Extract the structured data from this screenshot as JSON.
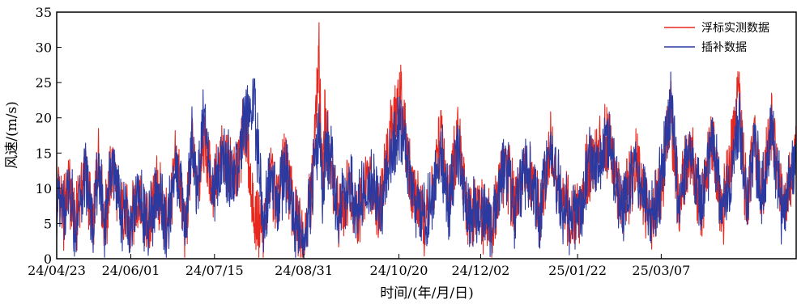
{
  "chart_data": {
    "type": "line",
    "title": "",
    "xlabel": "时间/(年/月/日)",
    "ylabel": "风速/(m/s)",
    "ylim": [
      0,
      35
    ],
    "yticks": [
      0,
      5,
      10,
      15,
      20,
      25,
      30,
      35
    ],
    "xlim": [
      "2024-04-23",
      "2025-05-17"
    ],
    "x_tick_labels": [
      "24/04/23",
      "24/06/01",
      "24/07/15",
      "24/08/31",
      "24/10/20",
      "24/12/02",
      "25/01/22",
      "25/03/07"
    ],
    "x_tick_dates": [
      "2024-04-23",
      "2024-06-01",
      "2024-07-15",
      "2024-08-31",
      "2024-10-20",
      "2024-12-02",
      "2025-01-22",
      "2025-03-07"
    ],
    "grid": false,
    "legend_position": "top-right",
    "series": [
      {
        "name": "浮标实测数据",
        "color": "#e8281e",
        "keypoints": [
          [
            "2024-04-23",
            3
          ],
          [
            "2024-04-24",
            13
          ],
          [
            "2024-04-26",
            5
          ],
          [
            "2024-04-29",
            12
          ],
          [
            "2024-05-03",
            4
          ],
          [
            "2024-05-08",
            15.5
          ],
          [
            "2024-05-12",
            3
          ],
          [
            "2024-05-15",
            18.5
          ],
          [
            "2024-05-18",
            3
          ],
          [
            "2024-05-22",
            15.5
          ],
          [
            "2024-05-27",
            7
          ],
          [
            "2024-06-01",
            4
          ],
          [
            "2024-06-05",
            11
          ],
          [
            "2024-06-10",
            3
          ],
          [
            "2024-06-15",
            11
          ],
          [
            "2024-06-20",
            4
          ],
          [
            "2024-06-25",
            16
          ],
          [
            "2024-06-30",
            3
          ],
          [
            "2024-07-03",
            19
          ],
          [
            "2024-07-06",
            9
          ],
          [
            "2024-07-09",
            21
          ],
          [
            "2024-07-14",
            11
          ],
          [
            "2024-07-20",
            17
          ],
          [
            "2024-07-26",
            12
          ],
          [
            "2024-07-31",
            23
          ],
          [
            "2024-08-05",
            5
          ],
          [
            "2024-08-10",
            4
          ],
          [
            "2024-08-14",
            14
          ],
          [
            "2024-08-17",
            6
          ],
          [
            "2024-08-21",
            16.5
          ],
          [
            "2024-08-26",
            5
          ],
          [
            "2024-08-31",
            3
          ],
          [
            "2024-09-04",
            10
          ],
          [
            "2024-09-08",
            33.5
          ],
          [
            "2024-09-10",
            10
          ],
          [
            "2024-09-11",
            24
          ],
          [
            "2024-09-13",
            17
          ],
          [
            "2024-09-18",
            6
          ],
          [
            "2024-09-24",
            12
          ],
          [
            "2024-09-28",
            6
          ],
          [
            "2024-10-04",
            13
          ],
          [
            "2024-10-10",
            8
          ],
          [
            "2024-10-16",
            21.5
          ],
          [
            "2024-10-21",
            27.5
          ],
          [
            "2024-10-26",
            12
          ],
          [
            "2024-11-01",
            5
          ],
          [
            "2024-11-06",
            8
          ],
          [
            "2024-11-11",
            21
          ],
          [
            "2024-11-15",
            8
          ],
          [
            "2024-11-20",
            21.5
          ],
          [
            "2024-11-25",
            6
          ],
          [
            "2024-12-02",
            7
          ],
          [
            "2024-12-08",
            4
          ],
          [
            "2024-12-15",
            16
          ],
          [
            "2024-12-20",
            7
          ],
          [
            "2024-12-26",
            14
          ],
          [
            "2025-01-02",
            6
          ],
          [
            "2025-01-08",
            18
          ],
          [
            "2025-01-14",
            7
          ],
          [
            "2025-01-22",
            5
          ],
          [
            "2025-01-28",
            15
          ],
          [
            "2025-02-03",
            17.5
          ],
          [
            "2025-02-08",
            20.5
          ],
          [
            "2025-02-14",
            7
          ],
          [
            "2025-02-22",
            15
          ],
          [
            "2025-03-01",
            5
          ],
          [
            "2025-03-07",
            12
          ],
          [
            "2025-03-12",
            25
          ],
          [
            "2025-03-16",
            8
          ],
          [
            "2025-03-22",
            18
          ],
          [
            "2025-03-28",
            7
          ],
          [
            "2025-04-03",
            20
          ],
          [
            "2025-04-08",
            5
          ],
          [
            "2025-04-14",
            21
          ],
          [
            "2025-04-17",
            26.5
          ],
          [
            "2025-04-21",
            8
          ],
          [
            "2025-04-25",
            20
          ],
          [
            "2025-04-29",
            9
          ],
          [
            "2025-05-04",
            23.5
          ],
          [
            "2025-05-10",
            6
          ],
          [
            "2025-05-16",
            17
          ]
        ]
      },
      {
        "name": "插补数据",
        "color": "#2b3aa0",
        "keypoints": [
          [
            "2024-04-23",
            3
          ],
          [
            "2024-04-24",
            12
          ],
          [
            "2024-04-26",
            5
          ],
          [
            "2024-04-29",
            11
          ],
          [
            "2024-05-03",
            4
          ],
          [
            "2024-05-08",
            15
          ],
          [
            "2024-05-12",
            3
          ],
          [
            "2024-05-15",
            15
          ],
          [
            "2024-05-18",
            3
          ],
          [
            "2024-05-22",
            15
          ],
          [
            "2024-05-27",
            7
          ],
          [
            "2024-06-01",
            4
          ],
          [
            "2024-06-05",
            10.5
          ],
          [
            "2024-06-10",
            3
          ],
          [
            "2024-06-15",
            10
          ],
          [
            "2024-06-20",
            4
          ],
          [
            "2024-06-25",
            15
          ],
          [
            "2024-06-30",
            3
          ],
          [
            "2024-07-03",
            19
          ],
          [
            "2024-07-06",
            9
          ],
          [
            "2024-07-09",
            24
          ],
          [
            "2024-07-14",
            11
          ],
          [
            "2024-07-20",
            16
          ],
          [
            "2024-07-26",
            12
          ],
          [
            "2024-07-31",
            23
          ],
          [
            "2024-08-05",
            25.5
          ],
          [
            "2024-08-10",
            4
          ],
          [
            "2024-08-14",
            13
          ],
          [
            "2024-08-17",
            6
          ],
          [
            "2024-08-21",
            15
          ],
          [
            "2024-08-26",
            5
          ],
          [
            "2024-08-31",
            3
          ],
          [
            "2024-09-04",
            10
          ],
          [
            "2024-09-08",
            22
          ],
          [
            "2024-09-10",
            10
          ],
          [
            "2024-09-11",
            17
          ],
          [
            "2024-09-13",
            18
          ],
          [
            "2024-09-18",
            6
          ],
          [
            "2024-09-24",
            12
          ],
          [
            "2024-09-28",
            6
          ],
          [
            "2024-10-04",
            13
          ],
          [
            "2024-10-10",
            8
          ],
          [
            "2024-10-16",
            17
          ],
          [
            "2024-10-21",
            22.5
          ],
          [
            "2024-10-26",
            12
          ],
          [
            "2024-11-01",
            5
          ],
          [
            "2024-11-06",
            8
          ],
          [
            "2024-11-11",
            18
          ],
          [
            "2024-11-15",
            8
          ],
          [
            "2024-11-20",
            19
          ],
          [
            "2024-11-25",
            6
          ],
          [
            "2024-12-02",
            7
          ],
          [
            "2024-12-08",
            4
          ],
          [
            "2024-12-15",
            16
          ],
          [
            "2024-12-20",
            7
          ],
          [
            "2024-12-26",
            14
          ],
          [
            "2025-01-02",
            6
          ],
          [
            "2025-01-08",
            18
          ],
          [
            "2025-01-14",
            7
          ],
          [
            "2025-01-22",
            5
          ],
          [
            "2025-01-28",
            15
          ],
          [
            "2025-02-03",
            17
          ],
          [
            "2025-02-08",
            19
          ],
          [
            "2025-02-14",
            7
          ],
          [
            "2025-02-22",
            15
          ],
          [
            "2025-03-01",
            5
          ],
          [
            "2025-03-07",
            12
          ],
          [
            "2025-03-12",
            26.5
          ],
          [
            "2025-03-16",
            8
          ],
          [
            "2025-03-22",
            18
          ],
          [
            "2025-03-28",
            7
          ],
          [
            "2025-04-03",
            20
          ],
          [
            "2025-04-08",
            5
          ],
          [
            "2025-04-14",
            17
          ],
          [
            "2025-04-17",
            23.5
          ],
          [
            "2025-04-21",
            8
          ],
          [
            "2025-04-25",
            19
          ],
          [
            "2025-04-29",
            9
          ],
          [
            "2025-05-04",
            21
          ],
          [
            "2025-05-10",
            6
          ],
          [
            "2025-05-16",
            16
          ]
        ]
      }
    ]
  }
}
